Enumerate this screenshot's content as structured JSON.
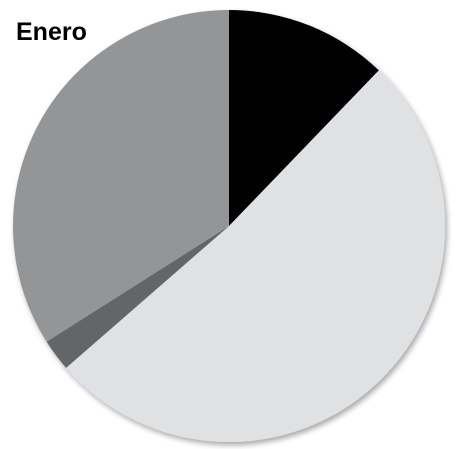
{
  "chart_data": {
    "type": "pie",
    "title": "Enero",
    "values": [
      12.2,
      51.4,
      2.4,
      34.0
    ],
    "colors": [
      "#000000",
      "#e0e1e2",
      "#646567",
      "#949597"
    ],
    "start_angle": 0,
    "direction": "clockwise"
  }
}
